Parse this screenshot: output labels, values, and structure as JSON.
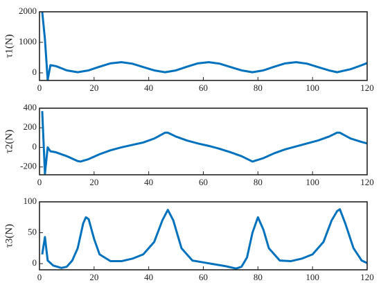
{
  "chart_data": [
    {
      "type": "line",
      "ylabel": "τ1(N)",
      "color": "#0072bd",
      "x": [
        1,
        2,
        3,
        4,
        6,
        8,
        10,
        14,
        18,
        22,
        26,
        30,
        34,
        38,
        42,
        46,
        50,
        54,
        58,
        62,
        66,
        70,
        74,
        78,
        82,
        86,
        90,
        94,
        98,
        102,
        106,
        109,
        114,
        118,
        120
      ],
      "values": [
        2000,
        1100,
        -230,
        250,
        220,
        150,
        80,
        20,
        80,
        200,
        310,
        350,
        300,
        190,
        80,
        20,
        80,
        200,
        310,
        350,
        300,
        190,
        80,
        20,
        80,
        200,
        310,
        350,
        300,
        190,
        80,
        20,
        120,
        250,
        320
      ],
      "xlim": [
        0,
        120
      ],
      "xticks": [
        0,
        20,
        40,
        60,
        80,
        100,
        120
      ],
      "ylim": [
        -250,
        2000
      ],
      "yticks": [
        0,
        1000,
        2000
      ]
    },
    {
      "type": "line",
      "ylabel": "τ2(N)",
      "color": "#0072bd",
      "x": [
        1,
        2,
        3,
        4,
        6,
        10,
        14,
        15,
        18,
        22,
        26,
        30,
        34,
        38,
        42,
        46,
        47,
        50,
        54,
        58,
        62,
        66,
        70,
        74,
        78,
        82,
        86,
        90,
        94,
        98,
        102,
        106,
        109,
        110,
        114,
        118,
        120
      ],
      "values": [
        370,
        -270,
        0,
        -40,
        -50,
        -90,
        -140,
        -145,
        -120,
        -70,
        -30,
        0,
        25,
        50,
        90,
        150,
        150,
        110,
        70,
        40,
        15,
        -15,
        -50,
        -90,
        -145,
        -110,
        -60,
        -20,
        10,
        40,
        70,
        110,
        150,
        150,
        90,
        55,
        40
      ],
      "xlim": [
        0,
        120
      ],
      "xticks": [
        0,
        20,
        40,
        60,
        80,
        100,
        120
      ],
      "ylim": [
        -280,
        400
      ],
      "yticks": [
        -200,
        0,
        200,
        400
      ]
    },
    {
      "type": "line",
      "ylabel": "τ3(N)",
      "color": "#0072bd",
      "x": [
        1,
        2,
        3,
        5,
        8,
        10,
        12,
        14,
        16,
        17,
        18,
        20,
        22,
        26,
        30,
        34,
        38,
        42,
        45,
        47,
        49,
        52,
        56,
        60,
        64,
        68,
        72,
        74,
        76,
        78,
        80,
        82,
        84,
        88,
        92,
        96,
        100,
        104,
        107,
        109,
        110,
        112,
        115,
        118,
        120
      ],
      "values": [
        15,
        43,
        5,
        -3,
        -7,
        -5,
        5,
        25,
        65,
        75,
        72,
        40,
        15,
        4,
        4,
        8,
        15,
        35,
        70,
        87,
        70,
        25,
        5,
        2,
        -1,
        -4,
        -8,
        -5,
        10,
        50,
        75,
        55,
        25,
        5,
        4,
        8,
        15,
        35,
        70,
        85,
        88,
        65,
        25,
        5,
        1
      ],
      "xlim": [
        0,
        120
      ],
      "xticks": [
        0,
        20,
        40,
        60,
        80,
        100,
        120
      ],
      "ylim": [
        -10,
        100
      ],
      "yticks": [
        0,
        50,
        100
      ]
    }
  ]
}
